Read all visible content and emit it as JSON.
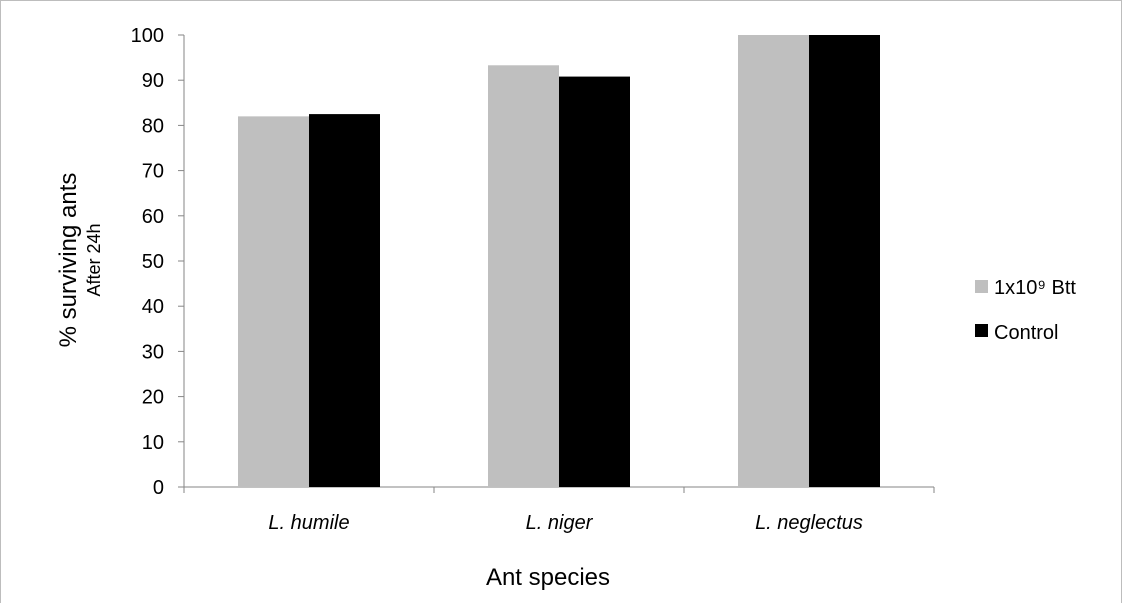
{
  "chart_data": {
    "type": "bar",
    "title": "",
    "xlabel": "Ant species",
    "ylabel": "% surviving ants",
    "ylabel_sub": "After 24h",
    "categories": [
      "L. humile",
      "L. niger",
      "L. neglectus"
    ],
    "series": [
      {
        "name": "1x10⁹ Btt",
        "values": [
          82,
          93.3,
          100
        ],
        "color": "#bfbfbf"
      },
      {
        "name": "Control",
        "values": [
          82.5,
          90.8,
          100
        ],
        "color": "#000000"
      }
    ],
    "ylim": [
      0,
      100
    ],
    "yticks": [
      "0",
      "10",
      "20",
      "30",
      "40",
      "50",
      "60",
      "70",
      "80",
      "90",
      "100"
    ],
    "grid": false,
    "legend_position": "right",
    "category_style": "italic"
  }
}
